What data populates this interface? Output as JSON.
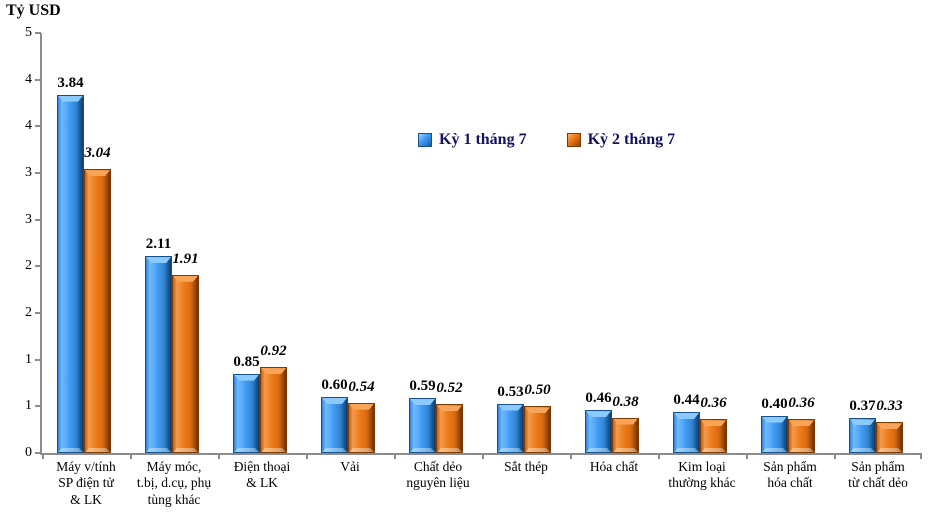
{
  "title": "Tỷ USD",
  "colors": {
    "series1": "#3E9BF5",
    "series2": "#EC7514",
    "axis": "#8C8C8C",
    "legend_text": "#13135E",
    "label_text": "#000000"
  },
  "legend": {
    "items": [
      {
        "label": "Kỳ 1 tháng 7",
        "swatch": "blue-beveled-square"
      },
      {
        "label": "Kỳ 2 tháng 7",
        "swatch": "orange-beveled-square"
      }
    ]
  },
  "chart_data": {
    "type": "bar",
    "title": "Tỷ USD",
    "xlabel": "",
    "ylabel": "Tỷ USD",
    "ylim": [
      0,
      4.5
    ],
    "ytick_labels_top_to_bottom": [
      "5",
      "4",
      "4",
      "3",
      "3",
      "2",
      "2",
      "1",
      "1",
      "0"
    ],
    "grid": false,
    "legend_position": "upper-center-inside",
    "categories": [
      [
        "Máy v/tính",
        "SP điện tử",
        "& LK"
      ],
      [
        "Máy móc,",
        "t.bị, d.cụ, phụ",
        "tùng khác"
      ],
      [
        "Điện thoại",
        "& LK"
      ],
      [
        "Vải"
      ],
      [
        "Chất dẻo",
        "nguyên liệu"
      ],
      [
        "Sắt thép"
      ],
      [
        "Hóa chất"
      ],
      [
        "Kim loại",
        "thường khác"
      ],
      [
        "Sản phẩm",
        "hóa chất"
      ],
      [
        "Sản phẩm",
        "từ chất dẻo"
      ]
    ],
    "series": [
      {
        "name": "Kỳ 1 tháng 7",
        "color": "#3E9BF5",
        "values": [
          3.84,
          2.11,
          0.85,
          0.6,
          0.59,
          0.53,
          0.46,
          0.44,
          0.4,
          0.37
        ]
      },
      {
        "name": "Kỳ 2 tháng 7",
        "color": "#EC7514",
        "values": [
          3.04,
          1.91,
          0.92,
          0.54,
          0.52,
          0.5,
          0.38,
          0.36,
          0.36,
          0.33
        ]
      }
    ]
  }
}
